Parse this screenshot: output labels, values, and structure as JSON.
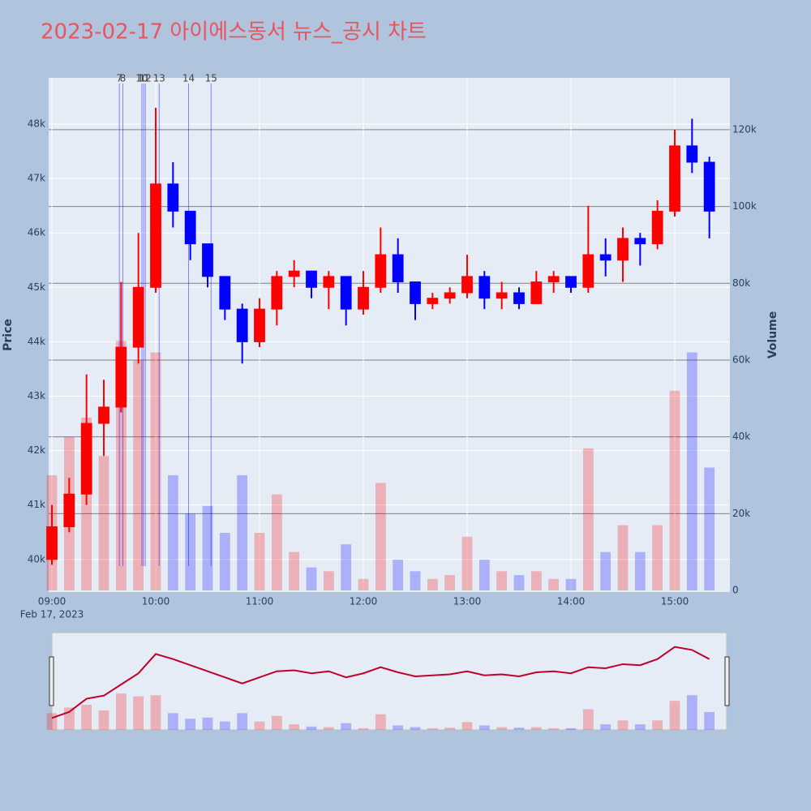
{
  "chart_data": {
    "type": "candlestick",
    "title": "2023-02-17 아이에스동서 뉴스_공시 차트",
    "x": [
      "09:00",
      "09:10",
      "09:20",
      "09:30",
      "09:40",
      "09:50",
      "10:00",
      "10:10",
      "10:20",
      "10:30",
      "10:40",
      "10:50",
      "11:00",
      "11:10",
      "11:20",
      "11:30",
      "11:40",
      "11:50",
      "12:00",
      "12:10",
      "12:20",
      "12:30",
      "12:40",
      "12:50",
      "13:00",
      "13:10",
      "13:20",
      "13:30",
      "13:40",
      "13:50",
      "14:00",
      "14:10",
      "14:20",
      "14:30",
      "14:40",
      "14:50",
      "15:00",
      "15:10",
      "15:20"
    ],
    "open": [
      40000,
      40600,
      41200,
      42500,
      42800,
      43900,
      45000,
      46900,
      46400,
      45800,
      45200,
      44600,
      44000,
      44600,
      45200,
      45300,
      45000,
      45200,
      44600,
      45000,
      45600,
      45100,
      44700,
      44800,
      44900,
      45200,
      44800,
      44900,
      44700,
      45100,
      45200,
      45000,
      45600,
      45500,
      45900,
      45800,
      46400,
      47600,
      47300
    ],
    "high": [
      41000,
      41500,
      43400,
      43300,
      45100,
      46000,
      48300,
      47300,
      46400,
      45800,
      45200,
      44700,
      44800,
      45300,
      45500,
      45300,
      45300,
      45200,
      45300,
      46100,
      45900,
      45100,
      44900,
      45000,
      45600,
      45300,
      45100,
      45000,
      45300,
      45300,
      45200,
      46500,
      45900,
      46100,
      46000,
      46600,
      47900,
      48100,
      47400
    ],
    "low": [
      39900,
      40500,
      41000,
      41900,
      42700,
      43600,
      44900,
      46100,
      45500,
      45000,
      44400,
      43600,
      43900,
      44300,
      45000,
      44800,
      44600,
      44300,
      44500,
      44900,
      44900,
      44400,
      44600,
      44700,
      44800,
      44600,
      44600,
      44600,
      44700,
      44900,
      44900,
      44900,
      45200,
      45100,
      45400,
      45700,
      46300,
      47100,
      45900
    ],
    "close": [
      40600,
      41200,
      42500,
      42800,
      43900,
      45000,
      46900,
      46400,
      45800,
      45200,
      44600,
      44000,
      44600,
      45200,
      45300,
      45000,
      45200,
      44600,
      45000,
      45600,
      45100,
      44700,
      44800,
      44900,
      45200,
      44800,
      44900,
      44700,
      45100,
      45200,
      45000,
      45600,
      45500,
      45900,
      45800,
      46400,
      47600,
      47300,
      46400
    ],
    "volume": [
      30000,
      40000,
      45000,
      35000,
      65000,
      60000,
      62000,
      30000,
      20000,
      22000,
      15000,
      30000,
      15000,
      25000,
      10000,
      6000,
      5000,
      12000,
      3000,
      28000,
      8000,
      5000,
      3000,
      4000,
      14000,
      8000,
      5000,
      4000,
      5000,
      3000,
      3000,
      37000,
      10000,
      17000,
      10000,
      17000,
      52000,
      62000,
      32000
    ],
    "increasing_color": "#ff0000",
    "decreasing_color": "#0000ff",
    "xlim": [
      "09:00",
      "15:30"
    ],
    "xticks": [
      "09:00",
      "10:00",
      "11:00",
      "12:00",
      "13:00",
      "14:00",
      "15:00"
    ],
    "x_date_label": "Feb 17, 2023",
    "ylim": [
      39430,
      48850
    ],
    "yticks": [
      {
        "value": 40000,
        "label": "40k"
      },
      {
        "value": 41000,
        "label": "41k"
      },
      {
        "value": 42000,
        "label": "42k"
      },
      {
        "value": 43000,
        "label": "43k"
      },
      {
        "value": 44000,
        "label": "44k"
      },
      {
        "value": 45000,
        "label": "45k"
      },
      {
        "value": 46000,
        "label": "46k"
      },
      {
        "value": 47000,
        "label": "47k"
      },
      {
        "value": 48000,
        "label": "48k"
      }
    ],
    "y2lim": [
      0,
      133500
    ],
    "y2ticks": [
      0,
      {
        "value": 20000,
        "label": "20k"
      },
      {
        "value": 40000,
        "label": "40k"
      },
      {
        "value": 60000,
        "label": "60k"
      },
      {
        "value": 80000,
        "label": "80k"
      },
      {
        "value": 100000,
        "label": "100k"
      },
      {
        "value": 120000,
        "label": "120k"
      }
    ],
    "ylabel": "Price",
    "y2label": "Volume",
    "annotations": [
      {
        "x": "09:39",
        "text": "7"
      },
      {
        "x": "09:41",
        "text": "8"
      },
      {
        "x": "09:52",
        "text": "10"
      },
      {
        "x": "09:53",
        "text": "11"
      },
      {
        "x": "09:54",
        "text": "12"
      },
      {
        "x": "10:02",
        "text": "13"
      },
      {
        "x": "10:19",
        "text": "14"
      },
      {
        "x": "10:32",
        "text": "15"
      }
    ]
  }
}
